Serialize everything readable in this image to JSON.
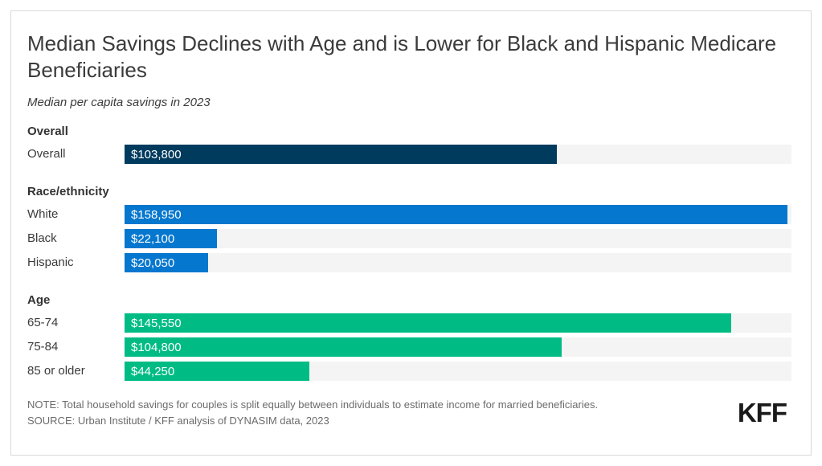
{
  "title": "Median Savings Declines with Age and is Lower for Black and Hispanic Medicare Beneficiaries",
  "subtitle": "Median per capita savings in 2023",
  "chart_data": {
    "type": "bar",
    "orientation": "horizontal",
    "title": "Median Savings Declines with Age and is Lower for Black and Hispanic Medicare Beneficiaries",
    "subtitle": "Median per capita savings in 2023",
    "value_unit": "USD",
    "axis_max": 160000,
    "track_color": "#f4f4f4",
    "groups": [
      {
        "header": "Overall",
        "bar_color": "#003a5d",
        "bars": [
          {
            "label": "Overall",
            "value": 103800,
            "value_label": "$103,800"
          }
        ]
      },
      {
        "header": "Race/ethnicity",
        "bar_color": "#0677ce",
        "bars": [
          {
            "label": "White",
            "value": 158950,
            "value_label": "$158,950"
          },
          {
            "label": "Black",
            "value": 22100,
            "value_label": "$22,100"
          },
          {
            "label": "Hispanic",
            "value": 20050,
            "value_label": "$20,050"
          }
        ]
      },
      {
        "header": "Age",
        "bar_color": "#00bc84",
        "bars": [
          {
            "label": "65-74",
            "value": 145550,
            "value_label": "$145,550"
          },
          {
            "label": "75-84",
            "value": 104800,
            "value_label": "$104,800"
          },
          {
            "label": "85 or older",
            "value": 44250,
            "value_label": "$44,250"
          }
        ]
      }
    ]
  },
  "footer": {
    "note": "NOTE: Total household savings for couples is split equally between individuals to estimate income for married beneficiaries.",
    "source": "SOURCE: Urban Institute / KFF analysis of DYNASIM data, 2023",
    "logo": "KFF"
  }
}
